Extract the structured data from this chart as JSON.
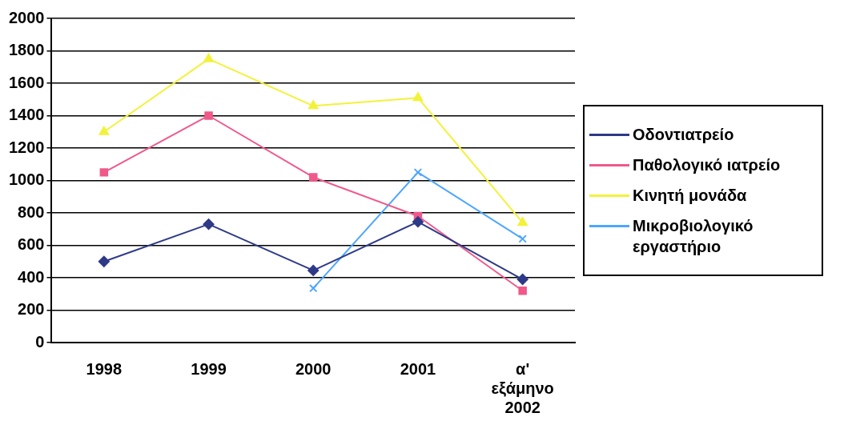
{
  "chart_data": {
    "type": "line",
    "categories": [
      "1998",
      "1999",
      "2000",
      "2001",
      "α' εξάμηνο 2002"
    ],
    "series": [
      {
        "name": "Οδοντιατρείο",
        "color": "#2e3a87",
        "marker": "diamond",
        "values": [
          500,
          730,
          445,
          745,
          390
        ]
      },
      {
        "name": "Παθολογικό ιατρείο",
        "color": "#f0598a",
        "marker": "square",
        "values": [
          1050,
          1400,
          1020,
          780,
          320
        ]
      },
      {
        "name": "Κινητή μονάδα",
        "color": "#f2f23a",
        "marker": "triangle",
        "values": [
          1300,
          1750,
          1460,
          1510,
          740
        ]
      },
      {
        "name": "Μικροβιολογικό εργαστήριο",
        "color": "#4da6ff",
        "marker": "cross",
        "values": [
          null,
          null,
          335,
          1050,
          640
        ]
      }
    ],
    "ylim": [
      0,
      2000
    ],
    "yticks": [
      0,
      200,
      400,
      600,
      800,
      1000,
      1200,
      1400,
      1600,
      1800,
      2000
    ],
    "grid": "y",
    "legend": "right"
  }
}
